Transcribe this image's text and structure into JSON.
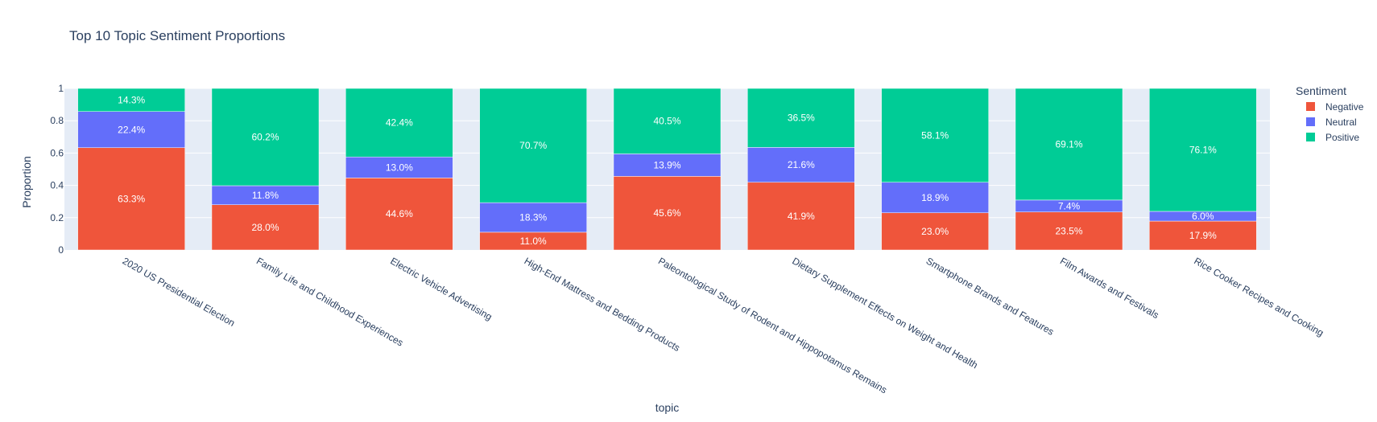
{
  "chart_data": {
    "type": "bar",
    "stacked": true,
    "title": "Top 10 Topic Sentiment Proportions",
    "xlabel": "topic",
    "ylabel": "Proportion",
    "ylim": [
      0,
      1
    ],
    "yticks": [
      0,
      0.2,
      0.4,
      0.6,
      0.8,
      1
    ],
    "ytick_labels": [
      "0",
      "0.2",
      "0.4",
      "0.6",
      "0.8",
      "1"
    ],
    "grid": true,
    "legend": {
      "title": "Sentiment",
      "placement": "top-right"
    },
    "categories": [
      "2020 US Presidential Election",
      "Family Life and Childhood Experiences",
      "Electric Vehicle Advertising",
      "High-End Mattress and Bedding Products",
      "Paleontological Study of Rodent and Hippopotamus Remains",
      "Dietary Supplement Effects on Weight and Health",
      "Smartphone Brands and Features",
      "Film Awards and Festivals",
      "Rice Cooker Recipes and Cooking"
    ],
    "series": [
      {
        "name": "Negative",
        "color": "#ef553b",
        "values": [
          0.633,
          0.28,
          0.446,
          0.11,
          0.456,
          0.419,
          0.23,
          0.235,
          0.179
        ],
        "labels": [
          "63.3%",
          "28.0%",
          "44.6%",
          "11.0%",
          "45.6%",
          "41.9%",
          "23.0%",
          "23.5%",
          "17.9%"
        ]
      },
      {
        "name": "Neutral",
        "color": "#636efa",
        "values": [
          0.224,
          0.118,
          0.13,
          0.183,
          0.139,
          0.216,
          0.189,
          0.074,
          0.06
        ],
        "labels": [
          "22.4%",
          "11.8%",
          "13.0%",
          "18.3%",
          "13.9%",
          "21.6%",
          "18.9%",
          "7.4%",
          "6.0%"
        ]
      },
      {
        "name": "Positive",
        "color": "#00cc96",
        "values": [
          0.143,
          0.602,
          0.424,
          0.707,
          0.405,
          0.365,
          0.581,
          0.691,
          0.761
        ],
        "labels": [
          "14.3%",
          "60.2%",
          "42.4%",
          "70.7%",
          "40.5%",
          "36.5%",
          "58.1%",
          "69.1%",
          "76.1%"
        ]
      }
    ],
    "colors": {
      "plot_background": "#e5ecf6",
      "grid": "#ffffff",
      "text": "#2a3f5f"
    }
  }
}
